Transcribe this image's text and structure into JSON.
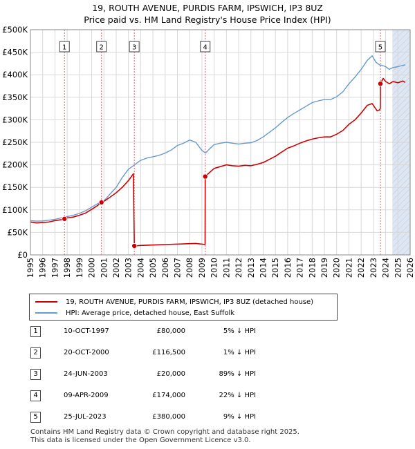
{
  "title": "19, ROUTH AVENUE, PURDIS FARM, IPSWICH, IP3 8UZ",
  "subtitle": "Price paid vs. HM Land Registry's House Price Index (HPI)",
  "colors": {
    "property": "#cc0000",
    "hpi": "#6699cc",
    "marker_line": "#e06060",
    "shade": "#dde6f3",
    "hatch": "#c8c8c8"
  },
  "chart_data": {
    "type": "line",
    "xlim": [
      1995,
      2026
    ],
    "ylim": [
      0,
      500000
    ],
    "y_ticks": [
      0,
      50000,
      100000,
      150000,
      200000,
      250000,
      300000,
      350000,
      400000,
      450000,
      500000
    ],
    "y_tick_labels": [
      "£0",
      "£50K",
      "£100K",
      "£150K",
      "£200K",
      "£250K",
      "£300K",
      "£350K",
      "£400K",
      "£450K",
      "£500K"
    ],
    "x_ticks": [
      1995,
      1996,
      1997,
      1998,
      1999,
      2000,
      2001,
      2002,
      2003,
      2004,
      2005,
      2006,
      2007,
      2008,
      2009,
      2010,
      2011,
      2012,
      2013,
      2014,
      2015,
      2016,
      2017,
      2018,
      2019,
      2020,
      2021,
      2022,
      2023,
      2024,
      2025,
      2026
    ],
    "x_tick_labels": [
      "1995",
      "1996",
      "1997",
      "1998",
      "1999",
      "2000",
      "2001",
      "2002",
      "2003",
      "2004",
      "2005",
      "2006",
      "2007",
      "2008",
      "2009",
      "2010",
      "2011",
      "2012",
      "2013",
      "2014",
      "2015",
      "2016",
      "2017",
      "2018",
      "2019",
      "2020",
      "2021",
      "2022",
      "2023",
      "2024",
      "2025",
      "2026"
    ],
    "shaded_region": [
      2024.55,
      2026
    ],
    "series": [
      {
        "name": "19, ROUTH AVENUE, PURDIS FARM, IPSWICH, IP3 8UZ (detached house)",
        "color": "#cc0000",
        "x": [
          1995.0,
          1995.5,
          1996.0,
          1996.5,
          1997.0,
          1997.5,
          1997.78,
          1998.0,
          1998.5,
          1999.0,
          1999.5,
          2000.0,
          2000.5,
          2000.8,
          2001.0,
          2001.5,
          2002.0,
          2002.5,
          2003.0,
          2003.4,
          2003.48,
          2004.0,
          2005.0,
          2006.0,
          2007.0,
          2008.0,
          2008.5,
          2009.0,
          2009.26,
          2009.27,
          2009.5,
          2010.0,
          2010.5,
          2011.0,
          2011.5,
          2012.0,
          2012.5,
          2013.0,
          2013.5,
          2014.0,
          2014.5,
          2015.0,
          2015.5,
          2016.0,
          2016.5,
          2017.0,
          2017.5,
          2018.0,
          2018.5,
          2019.0,
          2019.5,
          2020.0,
          2020.5,
          2021.0,
          2021.5,
          2022.0,
          2022.5,
          2022.9,
          2023.3,
          2023.5,
          2023.56,
          2023.57,
          2023.8,
          2024.0,
          2024.3,
          2024.6,
          2025.0,
          2025.4,
          2025.6
        ],
        "values": [
          73000,
          71000,
          72000,
          73000,
          76000,
          78000,
          80000,
          82000,
          84000,
          88000,
          93000,
          101000,
          110000,
          116500,
          119000,
          128000,
          138000,
          150000,
          165000,
          180000,
          20000,
          21000,
          22000,
          23000,
          24000,
          25000,
          25500,
          24000,
          23000,
          174000,
          180000,
          192000,
          196000,
          200000,
          198000,
          197000,
          199000,
          198000,
          201000,
          205000,
          212000,
          219000,
          228000,
          237000,
          242000,
          248000,
          253000,
          257000,
          260000,
          262000,
          262000,
          268000,
          276000,
          290000,
          300000,
          315000,
          332000,
          336000,
          320000,
          322000,
          325000,
          380000,
          392000,
          385000,
          380000,
          385000,
          382000,
          386000,
          383000
        ]
      },
      {
        "name": "HPI: Average price, detached house, East Suffolk",
        "color": "#6699cc",
        "x": [
          1995.0,
          1995.5,
          1996.0,
          1996.5,
          1997.0,
          1997.5,
          1998.0,
          1998.5,
          1999.0,
          1999.5,
          2000.0,
          2000.5,
          2001.0,
          2001.5,
          2002.0,
          2002.5,
          2003.0,
          2003.5,
          2004.0,
          2004.5,
          2005.0,
          2005.5,
          2006.0,
          2006.5,
          2007.0,
          2007.5,
          2008.0,
          2008.5,
          2009.0,
          2009.3,
          2009.6,
          2010.0,
          2010.5,
          2011.0,
          2011.5,
          2012.0,
          2012.5,
          2013.0,
          2013.5,
          2014.0,
          2014.5,
          2015.0,
          2015.5,
          2016.0,
          2016.5,
          2017.0,
          2017.5,
          2018.0,
          2018.5,
          2019.0,
          2019.5,
          2020.0,
          2020.5,
          2021.0,
          2021.5,
          2022.0,
          2022.5,
          2022.9,
          2023.2,
          2023.5,
          2023.8,
          2024.0,
          2024.3,
          2024.6,
          2025.0,
          2025.4,
          2025.6
        ],
        "values": [
          76000,
          75000,
          75500,
          77000,
          79000,
          82000,
          85000,
          88000,
          92000,
          98000,
          106000,
          114000,
          120000,
          135000,
          150000,
          172000,
          190000,
          200000,
          210000,
          215000,
          218000,
          221000,
          226000,
          233000,
          243000,
          248000,
          255000,
          250000,
          232000,
          226000,
          235000,
          245000,
          248000,
          250000,
          248000,
          246000,
          248000,
          249000,
          254000,
          262000,
          272000,
          282000,
          294000,
          305000,
          314000,
          322000,
          330000,
          338000,
          342000,
          345000,
          345000,
          351000,
          362000,
          380000,
          395000,
          412000,
          432000,
          442000,
          428000,
          422000,
          420000,
          418000,
          412000,
          416000,
          418000,
          421000,
          422000
        ]
      }
    ],
    "transactions": [
      {
        "label": "1",
        "x": 1997.78,
        "price": 80000
      },
      {
        "label": "2",
        "x": 2000.8,
        "price": 116500
      },
      {
        "label": "3",
        "x": 2003.48,
        "price": 20000
      },
      {
        "label": "4",
        "x": 2009.27,
        "price": 174000
      },
      {
        "label": "5",
        "x": 2023.57,
        "price": 380000
      }
    ]
  },
  "legend": {
    "property_label": "19, ROUTH AVENUE, PURDIS FARM, IPSWICH, IP3 8UZ (detached house)",
    "hpi_label": "HPI: Average price, detached house, East Suffolk"
  },
  "transactions_table": [
    {
      "num": "1",
      "date": "10-OCT-1997",
      "price": "£80,000",
      "hpi": "5% ↓ HPI"
    },
    {
      "num": "2",
      "date": "20-OCT-2000",
      "price": "£116,500",
      "hpi": "1% ↓ HPI"
    },
    {
      "num": "3",
      "date": "24-JUN-2003",
      "price": "£20,000",
      "hpi": "89% ↓ HPI"
    },
    {
      "num": "4",
      "date": "09-APR-2009",
      "price": "£174,000",
      "hpi": "22% ↓ HPI"
    },
    {
      "num": "5",
      "date": "25-JUL-2023",
      "price": "£380,000",
      "hpi": "9% ↓ HPI"
    }
  ],
  "footer": {
    "line1": "Contains HM Land Registry data © Crown copyright and database right 2025.",
    "line2": "This data is licensed under the Open Government Licence v3.0."
  }
}
